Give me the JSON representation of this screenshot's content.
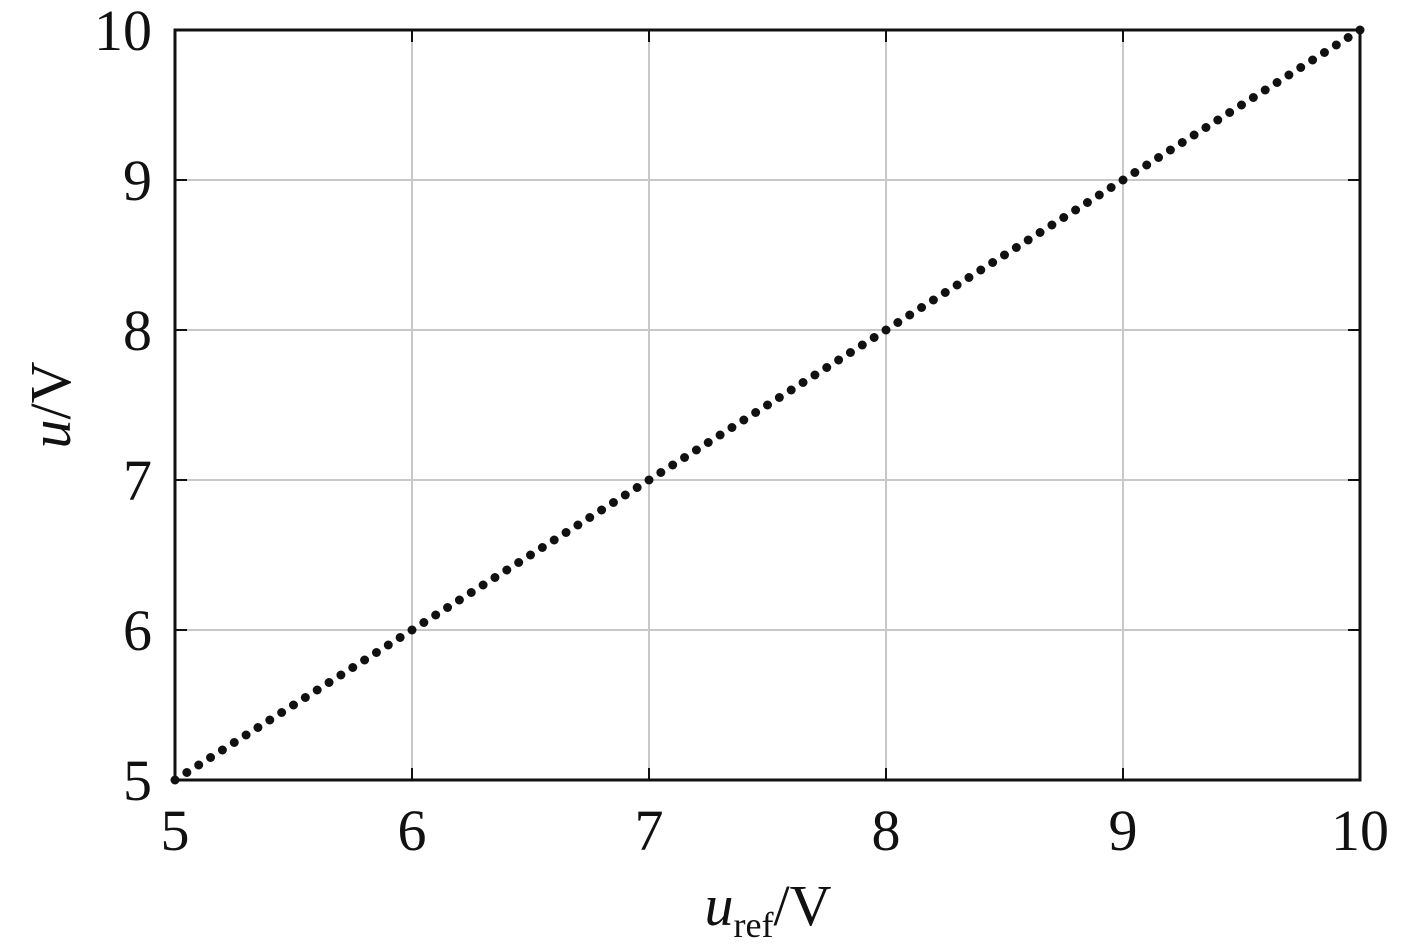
{
  "chart_data": {
    "type": "scatter",
    "xlabel": {
      "var": "u",
      "sub": "ref",
      "unit": "/V"
    },
    "ylabel": {
      "var": "u",
      "unit": "/V"
    },
    "xlim": [
      5,
      10
    ],
    "ylim": [
      5,
      10
    ],
    "xticks": [
      "5",
      "6",
      "7",
      "8",
      "9",
      "10"
    ],
    "yticks": [
      "5",
      "6",
      "7",
      "8",
      "9",
      "10"
    ],
    "grid": true,
    "series": [
      {
        "x_start": 5,
        "x_end": 10,
        "x_step": 0.05,
        "relation": "u = u_ref",
        "marker": "dot",
        "color": "#111111"
      }
    ]
  }
}
